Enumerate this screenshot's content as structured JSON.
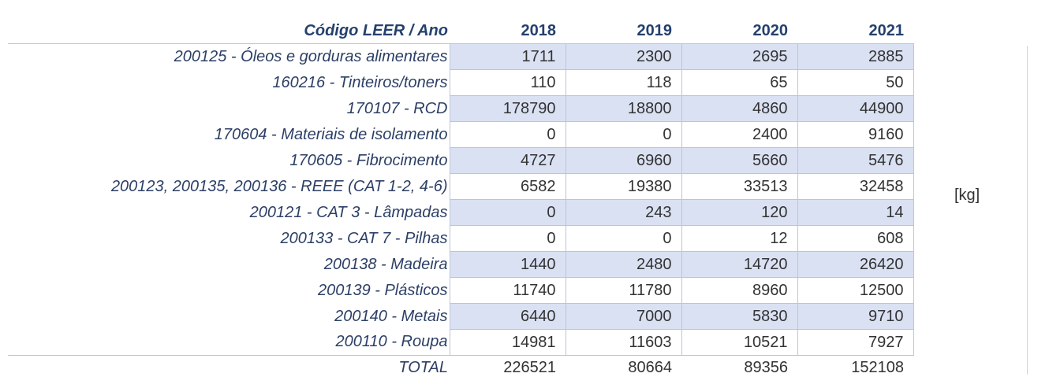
{
  "header": {
    "label": "Código LEER / Ano",
    "years": [
      "2018",
      "2019",
      "2020",
      "2021"
    ]
  },
  "rows": [
    {
      "label": "200125 - Óleos e gorduras alimentares",
      "values": [
        "1711",
        "2300",
        "2695",
        "2885"
      ]
    },
    {
      "label": "160216 - Tinteiros/toners",
      "values": [
        "110",
        "118",
        "65",
        "50"
      ]
    },
    {
      "label": "170107 - RCD",
      "values": [
        "178790",
        "18800",
        "4860",
        "44900"
      ]
    },
    {
      "label": "170604 - Materiais de isolamento",
      "values": [
        "0",
        "0",
        "2400",
        "9160"
      ]
    },
    {
      "label": "170605 - Fibrocimento",
      "values": [
        "4727",
        "6960",
        "5660",
        "5476"
      ]
    },
    {
      "label": "200123, 200135, 200136 - REEE (CAT 1-2, 4-6)",
      "values": [
        "6582",
        "19380",
        "33513",
        "32458"
      ]
    },
    {
      "label": "200121 - CAT 3 - Lâmpadas",
      "values": [
        "0",
        "243",
        "120",
        "14"
      ]
    },
    {
      "label": "200133 - CAT 7 - Pilhas",
      "values": [
        "0",
        "0",
        "12",
        "608"
      ]
    },
    {
      "label": "200138 - Madeira",
      "values": [
        "1440",
        "2480",
        "14720",
        "26420"
      ]
    },
    {
      "label": "200139 - Plásticos",
      "values": [
        "11740",
        "11780",
        "8960",
        "12500"
      ]
    },
    {
      "label": "200140 - Metais",
      "values": [
        "6440",
        "7000",
        "5830",
        "9710"
      ]
    },
    {
      "label": "200110 - Roupa",
      "values": [
        "14981",
        "11603",
        "10521",
        "7927"
      ]
    }
  ],
  "total": {
    "label": "TOTAL",
    "values": [
      "226521",
      "80664",
      "89356",
      "152108"
    ]
  },
  "unit": "[kg]",
  "colors": {
    "header_text": "#24406e",
    "shaded_cell": "#dae1f3",
    "grid": "#b9c5dc"
  }
}
